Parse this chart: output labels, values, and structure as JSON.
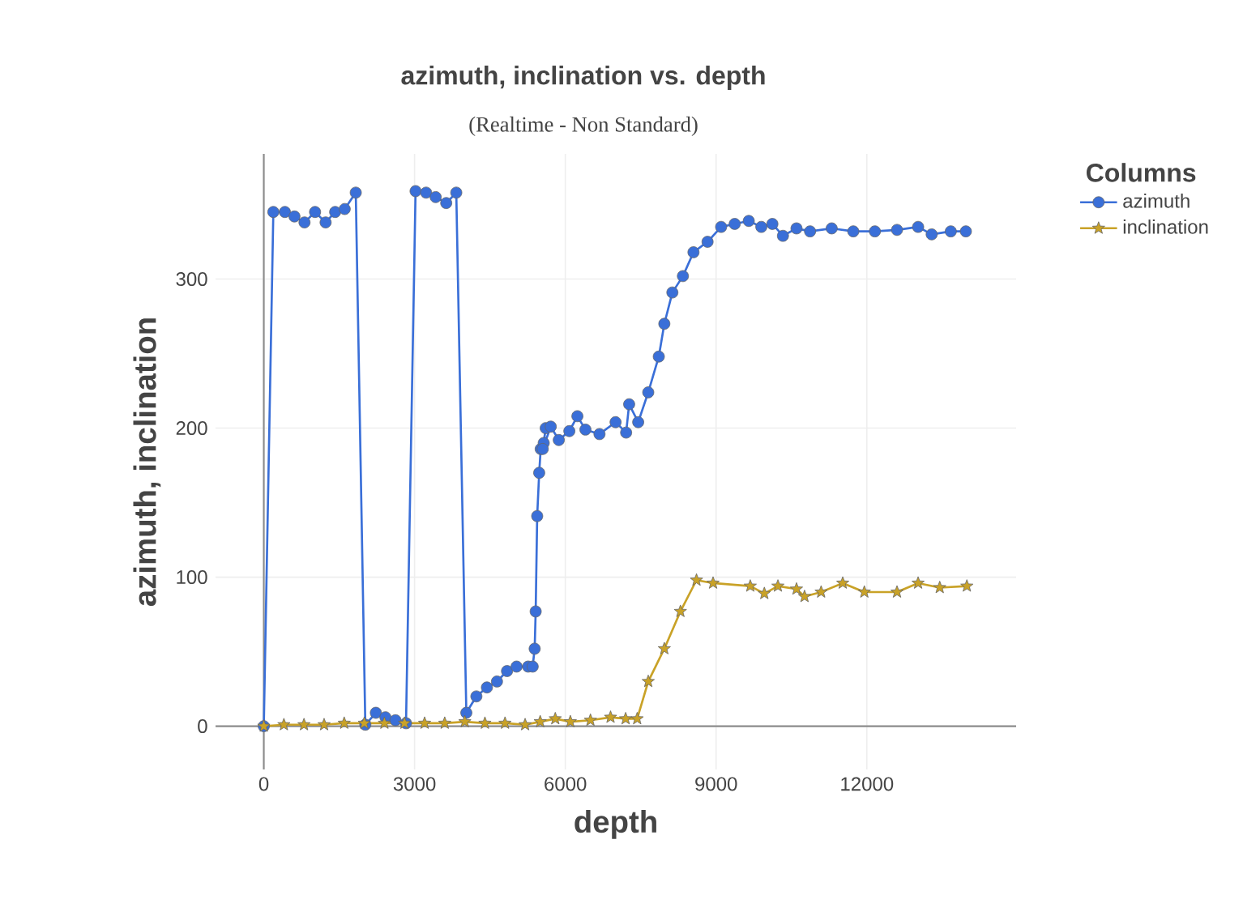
{
  "chart_data": {
    "type": "line",
    "title": "azimuth, inclination vs. depth",
    "subtitle": "(Realtime - Non Standard)",
    "xlabel": "depth",
    "ylabel": "azimuth, inclination",
    "legend_title": "Columns",
    "legend": "top right",
    "grid": true,
    "xlim": [
      -960,
      14970
    ],
    "ylim": [
      -29,
      384
    ],
    "xticks": [
      0,
      3000,
      6000,
      9000,
      12000
    ],
    "yticks": [
      0,
      100,
      200,
      300
    ],
    "series": [
      {
        "name": "azimuth",
        "color": "#3a6fd8",
        "marker": "circle",
        "x": [
          0,
          190,
          420,
          610,
          810,
          1020,
          1230,
          1420,
          1610,
          1830,
          2020,
          2230,
          2420,
          2620,
          2830,
          3020,
          3230,
          3420,
          3630,
          3830,
          4030,
          4230,
          4440,
          4640,
          4840,
          5030,
          5260,
          5350,
          5390,
          5410,
          5440,
          5480,
          5510,
          5570,
          5610,
          5550,
          5710,
          5870,
          6080,
          6240,
          6400,
          6680,
          7000,
          7210,
          7270,
          7450,
          7650,
          7860,
          7970,
          8130,
          8340,
          8550,
          8830,
          9100,
          9370,
          9650,
          9900,
          10120,
          10330,
          10600,
          10870,
          11300,
          11730,
          12160,
          12600,
          13020,
          13290,
          13670,
          13970
        ],
        "values": [
          0,
          345,
          345,
          342,
          338,
          345,
          338,
          345,
          347,
          358,
          1,
          9,
          6,
          4,
          2,
          359,
          358,
          355,
          351,
          358,
          9,
          20,
          26,
          30,
          37,
          40,
          40,
          40,
          52,
          77,
          141,
          170,
          186,
          190,
          200,
          186,
          201,
          192,
          198,
          208,
          199,
          196,
          204,
          197,
          216,
          204,
          224,
          248,
          270,
          291,
          302,
          318,
          325,
          335,
          337,
          339,
          335,
          337,
          329,
          334,
          332,
          334,
          332,
          332,
          333,
          335,
          330,
          332,
          332
        ]
      },
      {
        "name": "inclination",
        "color": "#c9a227",
        "marker": "star",
        "x": [
          0,
          400,
          800,
          1200,
          1600,
          2000,
          2400,
          2800,
          3200,
          3600,
          4000,
          4400,
          4800,
          5200,
          5500,
          5800,
          6100,
          6500,
          6900,
          7200,
          7430,
          7650,
          7970,
          8290,
          8610,
          8940,
          9680,
          9960,
          10230,
          10600,
          10760,
          11090,
          11520,
          11950,
          12600,
          13020,
          13450,
          13990
        ],
        "values": [
          0,
          1,
          1,
          1,
          2,
          2,
          2,
          2,
          2,
          2,
          3,
          2,
          2,
          1,
          3,
          5,
          3,
          4,
          6,
          5,
          5,
          30,
          52,
          77,
          98,
          96,
          94,
          89,
          94,
          92,
          87,
          90,
          96,
          90,
          90,
          96,
          93,
          94
        ]
      }
    ]
  }
}
